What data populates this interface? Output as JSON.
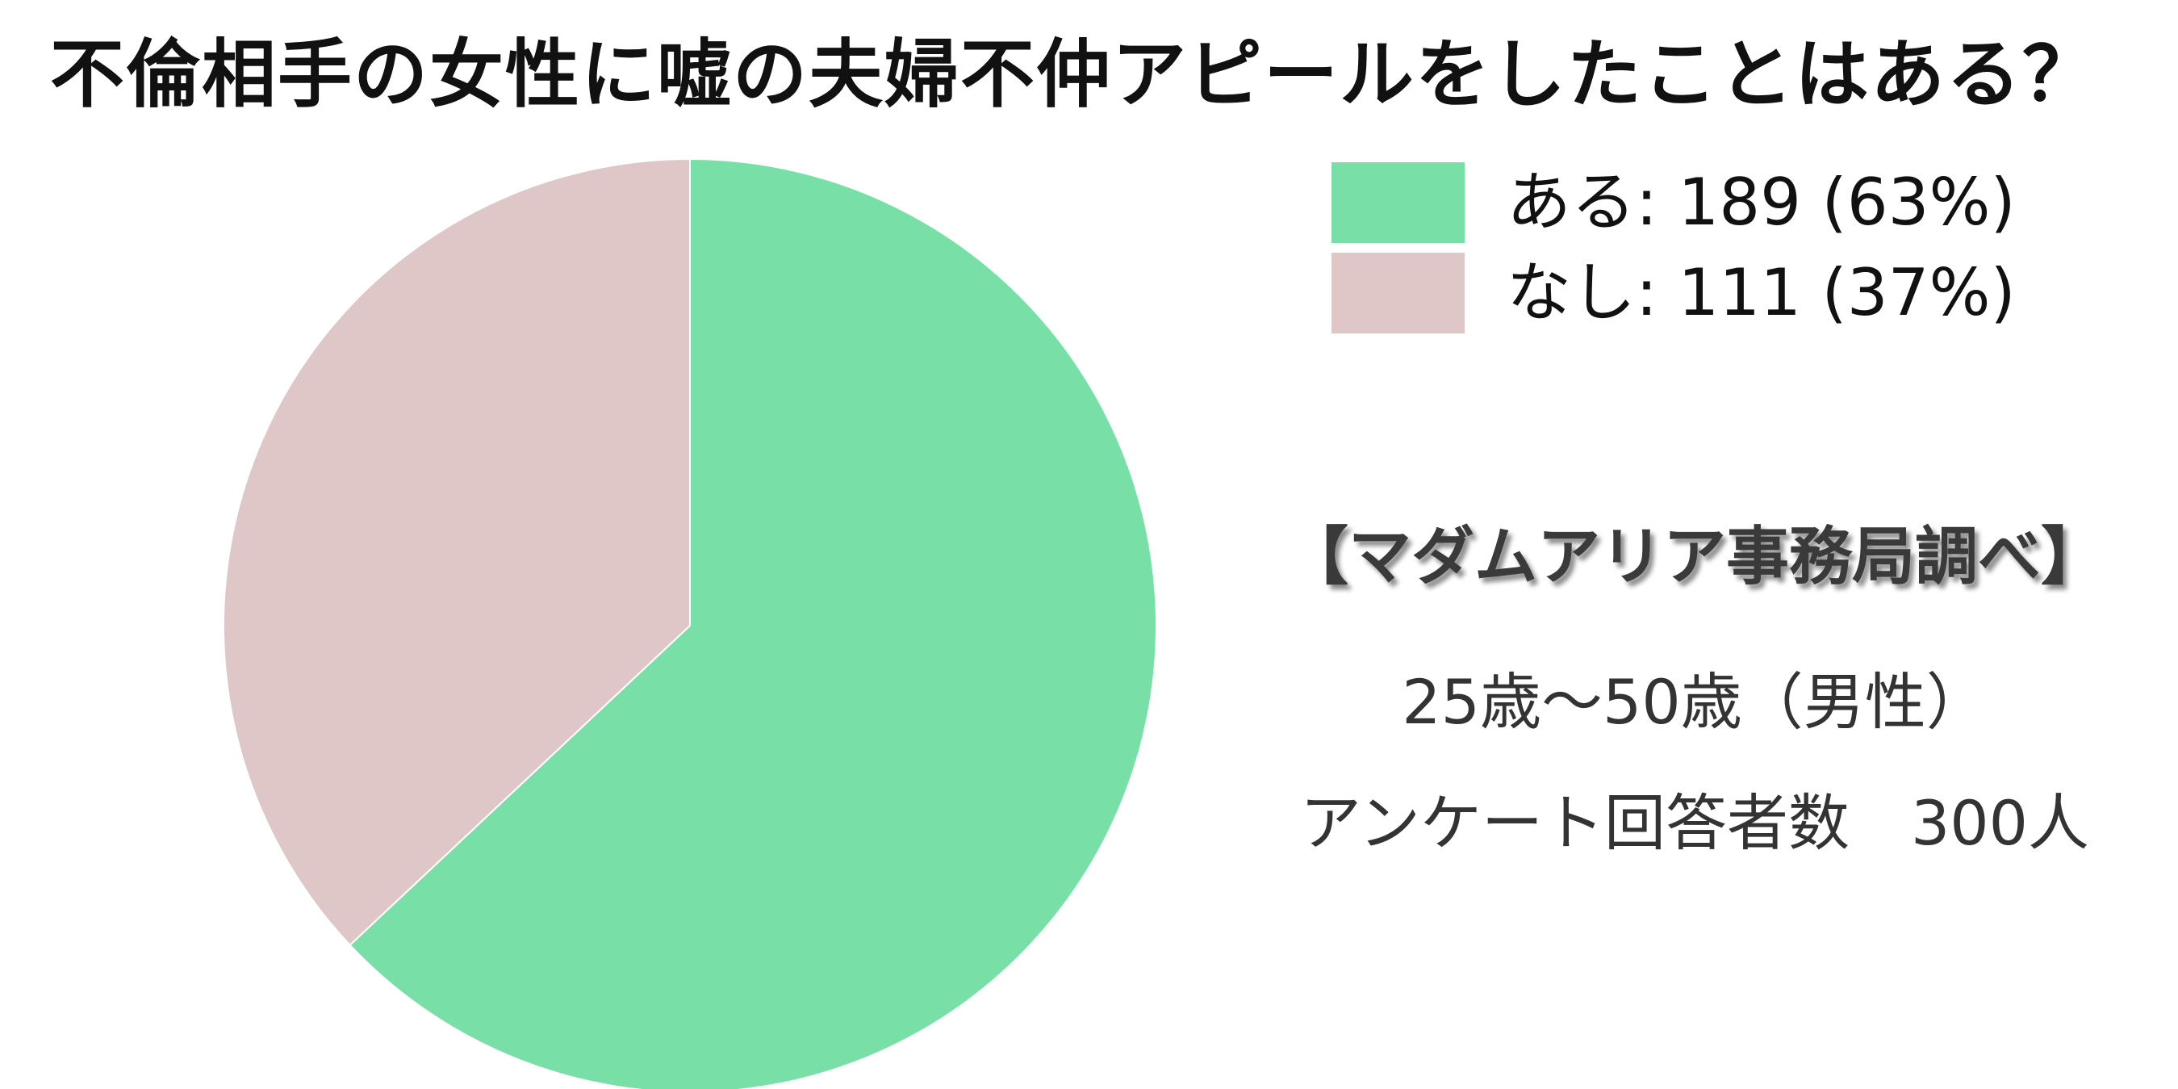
{
  "chart_data": {
    "type": "pie",
    "title": "不倫相手の女性に嘘の夫婦不仲アピールをしたことはある？",
    "slices": [
      {
        "label": "ある",
        "value": 189,
        "percent": 63,
        "color": "#78dfa6",
        "legend_text": "ある: 189 (63%)"
      },
      {
        "label": "なし",
        "value": 111,
        "percent": 37,
        "color": "#dfc7c8",
        "legend_text": "なし: 111 (37%)"
      }
    ],
    "start_angle": "12 o'clock",
    "direction": "clockwise",
    "legend_placement": "top-right"
  },
  "notes": {
    "source": "【マダムアリア事務局調べ】",
    "age_range": "25歳～50歳（男性）",
    "respondents": "アンケート回答者数　300人"
  }
}
